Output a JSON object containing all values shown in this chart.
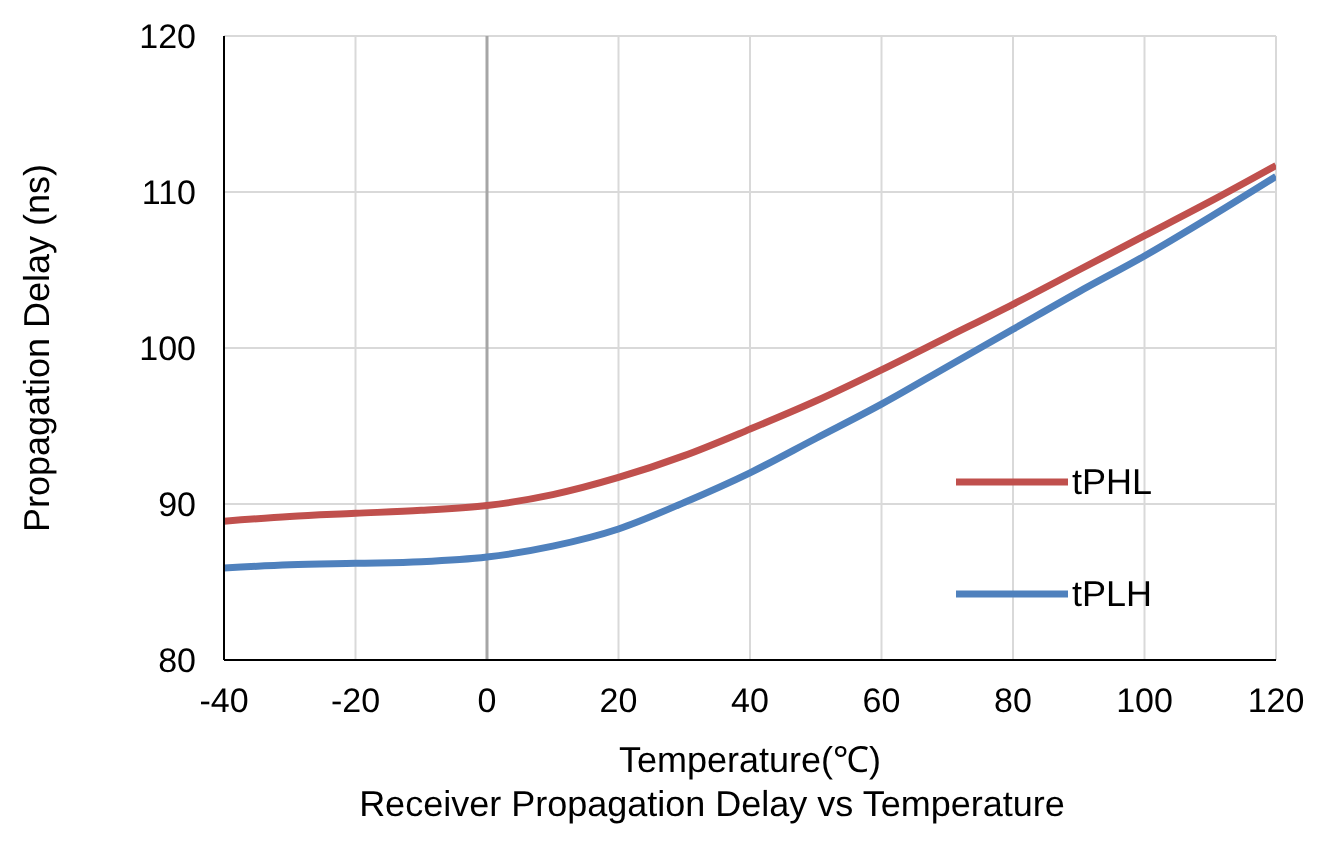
{
  "chart_data": {
    "type": "line",
    "title": "Receiver Propagation Delay vs Temperature",
    "xlabel": "Temperature(℃)",
    "ylabel": "Propagation Delay (ns)",
    "x": [
      -40,
      -30,
      -20,
      -10,
      0,
      10,
      20,
      30,
      40,
      50,
      60,
      70,
      80,
      90,
      100,
      110,
      120
    ],
    "series": [
      {
        "name": "tPHL",
        "color": "#c0504d",
        "values": [
          88.9,
          89.2,
          89.4,
          89.6,
          89.9,
          90.6,
          91.7,
          93.1,
          94.8,
          96.6,
          98.6,
          100.7,
          102.8,
          105.0,
          107.2,
          109.4,
          111.7
        ]
      },
      {
        "name": "tPLH",
        "color": "#4f81bd",
        "values": [
          85.9,
          86.1,
          86.2,
          86.3,
          86.6,
          87.3,
          88.4,
          90.1,
          92.0,
          94.2,
          96.4,
          98.8,
          101.2,
          103.6,
          105.9,
          108.4,
          111.0
        ]
      }
    ],
    "xlim": [
      -40,
      120
    ],
    "xticks": [
      -40,
      -20,
      0,
      20,
      40,
      60,
      80,
      100,
      120
    ],
    "ylim": [
      80,
      120
    ],
    "yticks": [
      80,
      90,
      100,
      110,
      120
    ],
    "grid": true,
    "legend": "right",
    "marker": "none",
    "line_style": "solid",
    "ref_lines": [
      {
        "axis": "x",
        "value": 0,
        "color": "#a6a6a6"
      }
    ]
  }
}
